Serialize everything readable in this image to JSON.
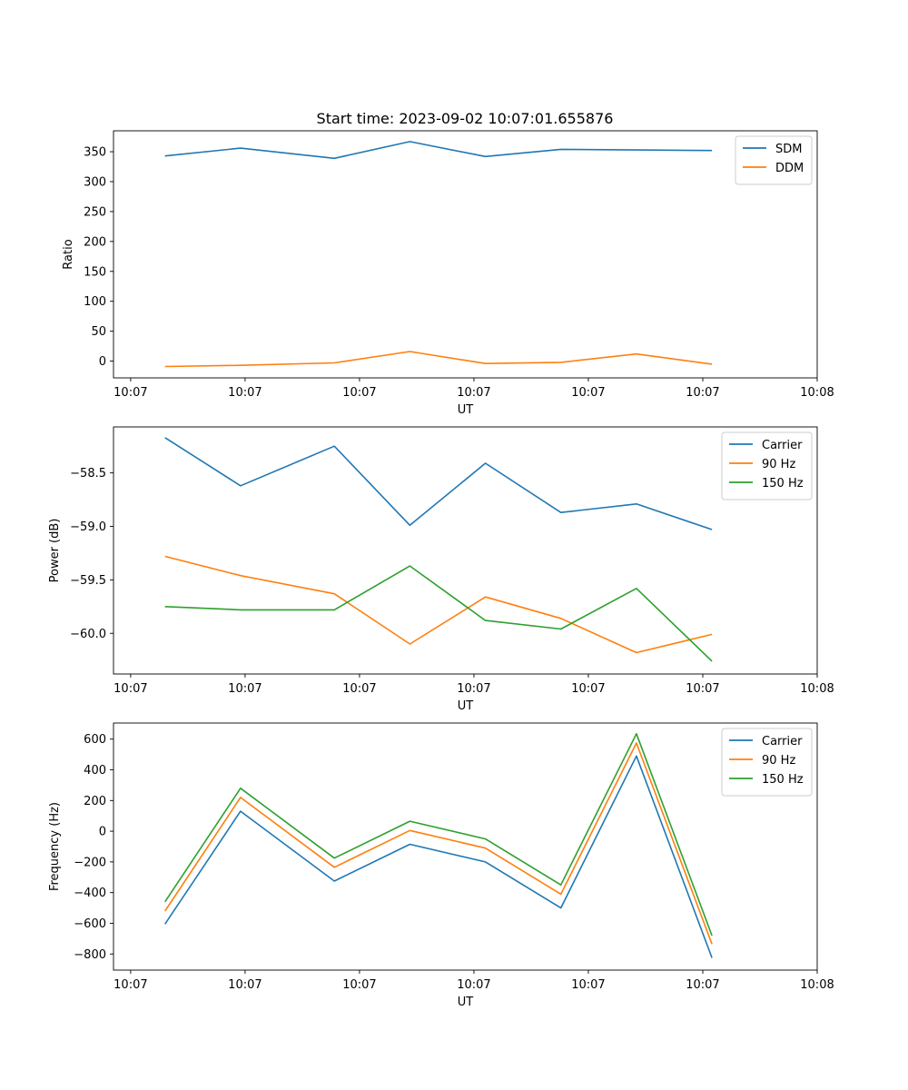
{
  "figure_title": "Start time: 2023-09-02 10:07:01.655876",
  "colors": {
    "blue": "#1f77b4",
    "orange": "#ff7f0e",
    "green": "#2ca02c"
  },
  "chart_data": [
    {
      "type": "line",
      "title": "Start time: 2023-09-02 10:07:01.655876",
      "xlabel": "UT",
      "ylabel": "Ratio",
      "x_tick_labels": [
        "10:07",
        "10:07",
        "10:07",
        "10:07",
        "10:07",
        "10:07",
        "10:08"
      ],
      "xlim": [
        -0.15,
        6.0
      ],
      "x": [
        0.3,
        0.96,
        1.78,
        2.44,
        3.1,
        3.76,
        4.42,
        5.08
      ],
      "ylim": [
        -28,
        385
      ],
      "yticks": [
        0,
        50,
        100,
        150,
        200,
        250,
        300,
        350
      ],
      "ytick_labels": [
        "0",
        "50",
        "100",
        "150",
        "200",
        "250",
        "300",
        "350"
      ],
      "legend_position": "top-right",
      "series": [
        {
          "name": "SDM",
          "color": "#1f77b4",
          "values": [
            343,
            356,
            339,
            367,
            342,
            354,
            353,
            352
          ]
        },
        {
          "name": "DDM",
          "color": "#ff7f0e",
          "values": [
            -9,
            -7,
            -3,
            16,
            -4,
            -2,
            12,
            -5
          ]
        }
      ]
    },
    {
      "type": "line",
      "title": "",
      "xlabel": "UT",
      "ylabel": "Power (dB)",
      "x_tick_labels": [
        "10:07",
        "10:07",
        "10:07",
        "10:07",
        "10:07",
        "10:07",
        "10:08"
      ],
      "xlim": [
        -0.15,
        6.0
      ],
      "x": [
        0.3,
        0.96,
        1.78,
        2.44,
        3.1,
        3.76,
        4.42,
        5.08
      ],
      "ylim": [
        -60.38,
        -58.07
      ],
      "yticks": [
        -60.0,
        -59.5,
        -59.0,
        -58.5
      ],
      "ytick_labels": [
        "−60.0",
        "−59.5",
        "−59.0",
        "−58.5"
      ],
      "legend_position": "top-right",
      "series": [
        {
          "name": "Carrier",
          "color": "#1f77b4",
          "values": [
            -58.17,
            -58.62,
            -58.25,
            -58.99,
            -58.41,
            -58.87,
            -58.79,
            -59.03
          ]
        },
        {
          "name": "90 Hz",
          "color": "#ff7f0e",
          "values": [
            -59.28,
            -59.46,
            -59.63,
            -60.1,
            -59.66,
            -59.86,
            -60.18,
            -60.01
          ]
        },
        {
          "name": "150 Hz",
          "color": "#2ca02c",
          "values": [
            -59.75,
            -59.78,
            -59.78,
            -59.37,
            -59.88,
            -59.96,
            -59.58,
            -60.26
          ]
        }
      ]
    },
    {
      "type": "line",
      "title": "",
      "xlabel": "UT",
      "ylabel": "Frequency (Hz)",
      "x_tick_labels": [
        "10:07",
        "10:07",
        "10:07",
        "10:07",
        "10:07",
        "10:07",
        "10:08"
      ],
      "xlim": [
        -0.15,
        6.0
      ],
      "x": [
        0.3,
        0.96,
        1.78,
        2.44,
        3.1,
        3.76,
        4.42,
        5.08
      ],
      "ylim": [
        -905,
        705
      ],
      "yticks": [
        -800,
        -600,
        -400,
        -200,
        0,
        200,
        400,
        600
      ],
      "ytick_labels": [
        "−800",
        "−600",
        "−400",
        "−200",
        "0",
        "200",
        "400",
        "600"
      ],
      "legend_position": "top-right",
      "series": [
        {
          "name": "Carrier",
          "color": "#1f77b4",
          "values": [
            -605,
            130,
            -325,
            -85,
            -200,
            -500,
            490,
            -825
          ]
        },
        {
          "name": "90 Hz",
          "color": "#ff7f0e",
          "values": [
            -520,
            220,
            -235,
            5,
            -110,
            -410,
            575,
            -735
          ]
        },
        {
          "name": "150 Hz",
          "color": "#2ca02c",
          "values": [
            -460,
            280,
            -175,
            65,
            -50,
            -350,
            635,
            -680
          ]
        }
      ]
    }
  ]
}
